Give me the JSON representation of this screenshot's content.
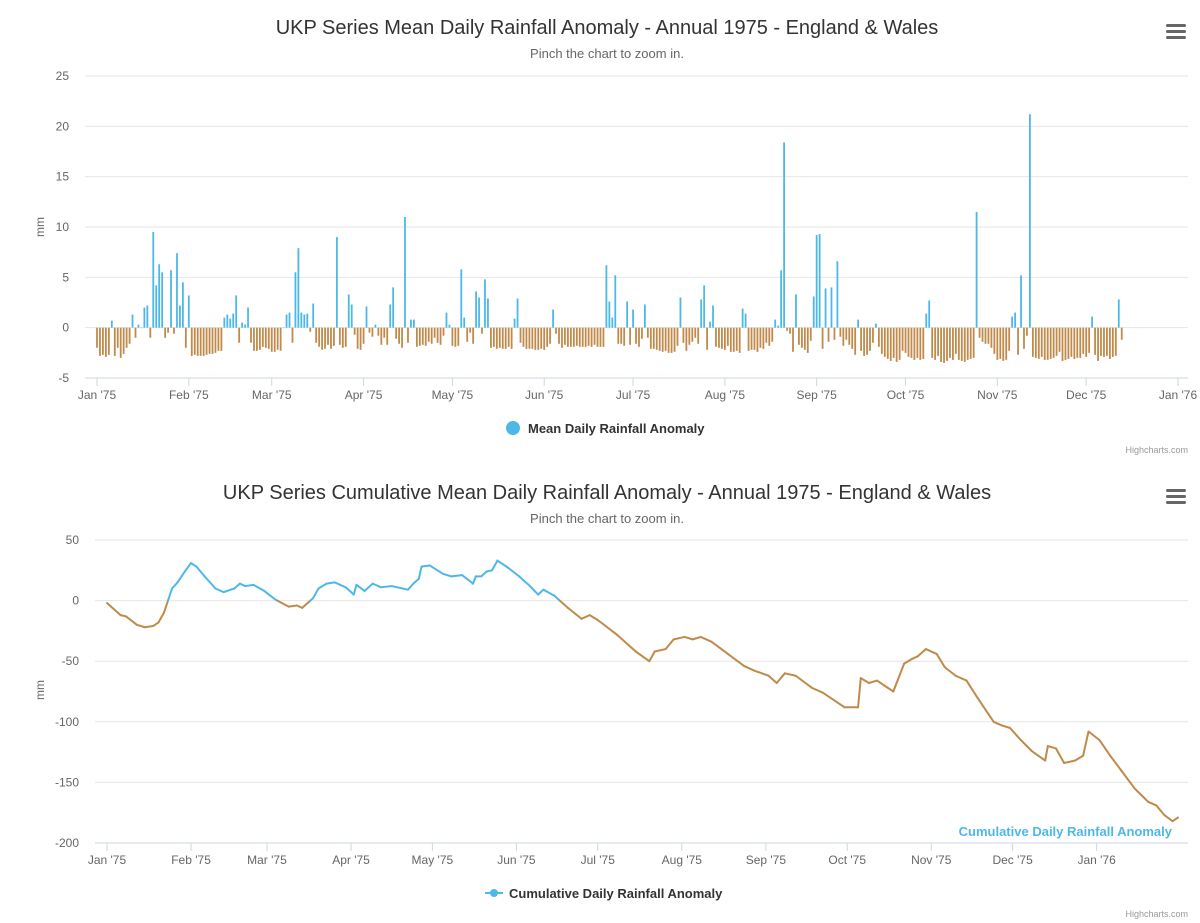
{
  "colors": {
    "positive": "#4db8e8",
    "negative": "#c08a4b",
    "grid": "#e6e6e6",
    "line": "#ccd6eb"
  },
  "credits": "Highcharts.com",
  "chart_data": [
    {
      "type": "bar",
      "title": "UKP Series Mean Daily Rainfall Anomaly - Annual 1975 - England & Wales",
      "subtitle": "Pinch the chart to zoom in.",
      "ylabel": "mm",
      "ylim": [
        -5,
        25
      ],
      "yticks": [
        25,
        20,
        15,
        10,
        5,
        0,
        -5
      ],
      "xticks": [
        "Jan '75",
        "Feb '75",
        "Mar '75",
        "Apr '75",
        "May '75",
        "Jun '75",
        "Jul '75",
        "Aug '75",
        "Sep '75",
        "Oct '75",
        "Nov '75",
        "Dec '75",
        "Jan '76"
      ],
      "legend": "Mean Daily Rainfall Anomaly",
      "legend_position": "bottom-center",
      "x_start": "1975-01-01",
      "values": [
        -2,
        -2.8,
        -2.7,
        -2.9,
        -2.7,
        0.7,
        -2.8,
        -2,
        -3,
        -2.6,
        -2,
        -1.6,
        1.3,
        -1,
        0.3,
        0,
        2,
        2.2,
        -1,
        9.5,
        4.2,
        6.3,
        5.5,
        -1,
        -0.5,
        5.7,
        -0.6,
        7.4,
        2.2,
        4.5,
        -2,
        3.2,
        -2.8,
        -2.7,
        -2.8,
        -2.8,
        -2.8,
        -2.7,
        -2.6,
        -2.6,
        -2.5,
        -2.3,
        -2.3,
        1,
        1.3,
        0.9,
        1.4,
        3.2,
        -1.5,
        0.5,
        0.3,
        2,
        -1.5,
        -2.3,
        -2.3,
        -2.2,
        -1.9,
        -2,
        -2.1,
        -2.4,
        -2.4,
        -2.2,
        -2.3,
        0,
        1.3,
        1.5,
        -1.5,
        5.5,
        7.9,
        1.5,
        1.3,
        1.4,
        -0.4,
        2.4,
        -1.5,
        -1.9,
        -2.2,
        -2.1,
        -1.7,
        -2.1,
        -1.8,
        9,
        -1.7,
        -2,
        -1.9,
        3.3,
        2.3,
        -0.7,
        -2.1,
        -2.2,
        -1.6,
        2.1,
        -0.5,
        -0.9,
        0.3,
        -0.8,
        -1.7,
        -1,
        -1.7,
        2.3,
        4,
        -1.1,
        -1.6,
        -2,
        11,
        -1.5,
        0.8,
        0.8,
        -1.9,
        -1.8,
        -1.7,
        -1.8,
        -1.4,
        -1.6,
        -1,
        -1.5,
        -1.7,
        -0.8,
        1.5,
        0.3,
        -1.8,
        -1.9,
        -1.8,
        5.8,
        1,
        -1.4,
        -0.5,
        -1.6,
        3.6,
        3,
        -0.6,
        4.8,
        2.9,
        -2,
        -1.9,
        -2.1,
        -2,
        -2.1,
        -2.1,
        -1.9,
        -2.1,
        0.9,
        2.9,
        -1.5,
        -1.9,
        -2.1,
        -2.1,
        -2.1,
        -2.2,
        -2.2,
        -2.1,
        -2.2,
        -1.9,
        -1.6,
        1.8,
        -0.6,
        -1.6,
        -2,
        -1.7,
        -1.9,
        -1.9,
        -1.9,
        -1.8,
        -1.9,
        -1.9,
        -1.9,
        -1.8,
        -1.9,
        -1.7,
        -1.9,
        -1.9,
        -1.9,
        6.2,
        2.6,
        1,
        5.2,
        -1.6,
        -1.6,
        -1.8,
        2.6,
        -1.7,
        1.8,
        -1.6,
        -1.9,
        -1.1,
        2.3,
        -1,
        -2.1,
        -2.1,
        -2.2,
        -2.3,
        -2.4,
        -2.3,
        -2.5,
        -2.5,
        -2.4,
        -1.8,
        3,
        -1.5,
        -2.3,
        -1.7,
        -1.4,
        -1,
        -1.6,
        2.8,
        4.2,
        -2.2,
        0.6,
        2.2,
        -1.9,
        -2,
        -2.1,
        -2.2,
        -1.8,
        -2.4,
        -2.4,
        -2.3,
        -2.5,
        1.9,
        1.4,
        -2.3,
        -2.2,
        -2.2,
        -2.4,
        -2,
        -2.1,
        -1.5,
        -1.8,
        -1.4,
        0.8,
        0.2,
        5.7,
        18.4,
        -0.3,
        -0.6,
        -2.4,
        3.3,
        -1.7,
        -2,
        -2.2,
        -2.5,
        -1.3,
        3.1,
        9.2,
        9.3,
        -2.1,
        3.9,
        -1.4,
        4,
        -1.2,
        6.6,
        -0.9,
        -1.8,
        -1.2,
        -1.7,
        -2.1,
        -2.7,
        0.8,
        -2.3,
        -2.8,
        -2.7,
        -2.3,
        -1.5,
        0.4,
        -1.9,
        -2.6,
        -2.9,
        -3.1,
        -3.3,
        -3,
        -3.4,
        -3.2,
        -2.3,
        -2.5,
        -2.9,
        -3,
        -3.2,
        -3,
        -3.2,
        -3.1,
        1.4,
        2.7,
        -3,
        -3.2,
        -2.8,
        -3.4,
        -3.5,
        -3.3,
        -3,
        -3.2,
        -2.6,
        -3.2,
        -3.3,
        -3.4,
        -3.2,
        -3.1,
        -3,
        11.5,
        -1,
        -1.4,
        -1.6,
        -1.6,
        -2,
        -2.6,
        -3.2,
        -3.1,
        -3.3,
        -3.2,
        -2.3,
        1.1,
        1.5,
        -2.7,
        5.2,
        -2.1,
        -0.8,
        21.2,
        -2.9,
        -3,
        -3.1,
        -2.9,
        -3.2,
        -3.2,
        -3.1,
        -3,
        -2.8,
        -2.4,
        -3.3,
        -3.2,
        -3.1,
        -2.9,
        -3.1,
        -3,
        -3,
        -2.6,
        -2.9,
        -2.5,
        1.1,
        -2.7,
        -3.3,
        -2.8,
        -2.9,
        -2.8,
        -3.1,
        -2.9,
        -2.8,
        2.8,
        -1.2
      ]
    },
    {
      "type": "line",
      "title": "UKP Series Cumulative Mean Daily Rainfall Anomaly - Annual 1975 - England & Wales",
      "subtitle": "Pinch the chart to zoom in.",
      "ylabel": "mm",
      "ylim": [
        -200,
        50
      ],
      "yticks": [
        50,
        0,
        -50,
        -100,
        -150,
        -200
      ],
      "xticks": [
        "Jan '75",
        "Feb '75",
        "Mar '75",
        "Apr '75",
        "May '75",
        "Jun '75",
        "Jul '75",
        "Aug '75",
        "Sep '75",
        "Oct '75",
        "Nov '75",
        "Dec '75",
        "Jan '76"
      ],
      "legend": "Cumulative Daily Rainfall Anomaly",
      "legend_position": "bottom-center",
      "end_label": "Cumulative Daily Rainfall Anomaly",
      "x_start": "1975-01-01",
      "points": [
        {
          "d": "1975-01-01",
          "v": -2
        },
        {
          "d": "1975-01-06",
          "v": -12
        },
        {
          "d": "1975-01-08",
          "v": -13
        },
        {
          "d": "1975-01-12",
          "v": -20
        },
        {
          "d": "1975-01-15",
          "v": -22
        },
        {
          "d": "1975-01-18",
          "v": -21
        },
        {
          "d": "1975-01-20",
          "v": -18
        },
        {
          "d": "1975-01-22",
          "v": -10
        },
        {
          "d": "1975-01-25",
          "v": 10
        },
        {
          "d": "1975-01-27",
          "v": 15
        },
        {
          "d": "1975-01-30",
          "v": 25
        },
        {
          "d": "1975-02-01",
          "v": 31
        },
        {
          "d": "1975-02-03",
          "v": 28
        },
        {
          "d": "1975-02-06",
          "v": 20
        },
        {
          "d": "1975-02-10",
          "v": 10
        },
        {
          "d": "1975-02-13",
          "v": 7
        },
        {
          "d": "1975-02-17",
          "v": 10
        },
        {
          "d": "1975-02-19",
          "v": 14
        },
        {
          "d": "1975-02-21",
          "v": 12
        },
        {
          "d": "1975-02-24",
          "v": 13
        },
        {
          "d": "1975-02-28",
          "v": 8
        },
        {
          "d": "1975-03-04",
          "v": 1
        },
        {
          "d": "1975-03-09",
          "v": -5
        },
        {
          "d": "1975-03-12",
          "v": -4
        },
        {
          "d": "1975-03-14",
          "v": -6
        },
        {
          "d": "1975-03-16",
          "v": -2
        },
        {
          "d": "1975-03-18",
          "v": 2
        },
        {
          "d": "1975-03-20",
          "v": 10
        },
        {
          "d": "1975-03-23",
          "v": 14
        },
        {
          "d": "1975-03-26",
          "v": 15
        },
        {
          "d": "1975-03-30",
          "v": 11
        },
        {
          "d": "1975-04-02",
          "v": 5
        },
        {
          "d": "1975-04-03",
          "v": 13
        },
        {
          "d": "1975-04-06",
          "v": 8
        },
        {
          "d": "1975-04-09",
          "v": 14
        },
        {
          "d": "1975-04-12",
          "v": 11
        },
        {
          "d": "1975-04-16",
          "v": 12
        },
        {
          "d": "1975-04-20",
          "v": 10
        },
        {
          "d": "1975-04-22",
          "v": 9
        },
        {
          "d": "1975-04-24",
          "v": 14
        },
        {
          "d": "1975-04-26",
          "v": 18
        },
        {
          "d": "1975-04-27",
          "v": 28
        },
        {
          "d": "1975-04-30",
          "v": 29
        },
        {
          "d": "1975-05-05",
          "v": 22
        },
        {
          "d": "1975-05-08",
          "v": 20
        },
        {
          "d": "1975-05-12",
          "v": 21
        },
        {
          "d": "1975-05-16",
          "v": 14
        },
        {
          "d": "1975-05-17",
          "v": 20
        },
        {
          "d": "1975-05-19",
          "v": 20
        },
        {
          "d": "1975-05-21",
          "v": 24
        },
        {
          "d": "1975-05-23",
          "v": 25
        },
        {
          "d": "1975-05-25",
          "v": 33
        },
        {
          "d": "1975-05-29",
          "v": 27
        },
        {
          "d": "1975-06-02",
          "v": 20
        },
        {
          "d": "1975-06-06",
          "v": 12
        },
        {
          "d": "1975-06-09",
          "v": 5
        },
        {
          "d": "1975-06-11",
          "v": 9
        },
        {
          "d": "1975-06-15",
          "v": 4
        },
        {
          "d": "1975-06-20",
          "v": -6
        },
        {
          "d": "1975-06-25",
          "v": -15
        },
        {
          "d": "1975-06-28",
          "v": -12
        },
        {
          "d": "1975-07-01",
          "v": -16
        },
        {
          "d": "1975-07-08",
          "v": -28
        },
        {
          "d": "1975-07-15",
          "v": -42
        },
        {
          "d": "1975-07-20",
          "v": -50
        },
        {
          "d": "1975-07-22",
          "v": -42
        },
        {
          "d": "1975-07-26",
          "v": -40
        },
        {
          "d": "1975-07-29",
          "v": -32
        },
        {
          "d": "1975-08-02",
          "v": -30
        },
        {
          "d": "1975-08-05",
          "v": -32
        },
        {
          "d": "1975-08-08",
          "v": -30
        },
        {
          "d": "1975-08-12",
          "v": -34
        },
        {
          "d": "1975-08-18",
          "v": -44
        },
        {
          "d": "1975-08-24",
          "v": -54
        },
        {
          "d": "1975-08-28",
          "v": -58
        },
        {
          "d": "1975-09-02",
          "v": -62
        },
        {
          "d": "1975-09-05",
          "v": -68
        },
        {
          "d": "1975-09-08",
          "v": -60
        },
        {
          "d": "1975-09-12",
          "v": -62
        },
        {
          "d": "1975-09-18",
          "v": -72
        },
        {
          "d": "1975-09-22",
          "v": -76
        },
        {
          "d": "1975-09-26",
          "v": -82
        },
        {
          "d": "1975-09-30",
          "v": -88
        },
        {
          "d": "1975-10-05",
          "v": -88
        },
        {
          "d": "1975-10-06",
          "v": -64
        },
        {
          "d": "1975-10-09",
          "v": -68
        },
        {
          "d": "1975-10-12",
          "v": -66
        },
        {
          "d": "1975-10-16",
          "v": -72
        },
        {
          "d": "1975-10-18",
          "v": -75
        },
        {
          "d": "1975-10-22",
          "v": -52
        },
        {
          "d": "1975-10-25",
          "v": -48
        },
        {
          "d": "1975-10-27",
          "v": -46
        },
        {
          "d": "1975-10-30",
          "v": -40
        },
        {
          "d": "1975-11-03",
          "v": -44
        },
        {
          "d": "1975-11-06",
          "v": -55
        },
        {
          "d": "1975-11-10",
          "v": -62
        },
        {
          "d": "1975-11-14",
          "v": -66
        },
        {
          "d": "1975-11-18",
          "v": -80
        },
        {
          "d": "1975-11-24",
          "v": -100
        },
        {
          "d": "1975-11-27",
          "v": -103
        },
        {
          "d": "1975-11-30",
          "v": -105
        },
        {
          "d": "1975-12-04",
          "v": -115
        },
        {
          "d": "1975-12-08",
          "v": -124
        },
        {
          "d": "1975-12-13",
          "v": -132
        },
        {
          "d": "1975-12-14",
          "v": -120
        },
        {
          "d": "1975-12-17",
          "v": -122
        },
        {
          "d": "1975-12-20",
          "v": -134
        },
        {
          "d": "1975-12-24",
          "v": -132
        },
        {
          "d": "1975-12-27",
          "v": -128
        },
        {
          "d": "1975-12-29",
          "v": -108
        },
        {
          "d": "1976-01-02",
          "v": -115
        },
        {
          "d": "1976-01-06",
          "v": -128
        },
        {
          "d": "1976-01-10",
          "v": -140
        },
        {
          "d": "1976-01-15",
          "v": -155
        },
        {
          "d": "1976-01-20",
          "v": -166
        },
        {
          "d": "1976-01-23",
          "v": -169
        },
        {
          "d": "1976-01-26",
          "v": -177
        },
        {
          "d": "1976-01-29",
          "v": -182
        },
        {
          "d": "1976-01-31",
          "v": -179
        }
      ]
    }
  ]
}
